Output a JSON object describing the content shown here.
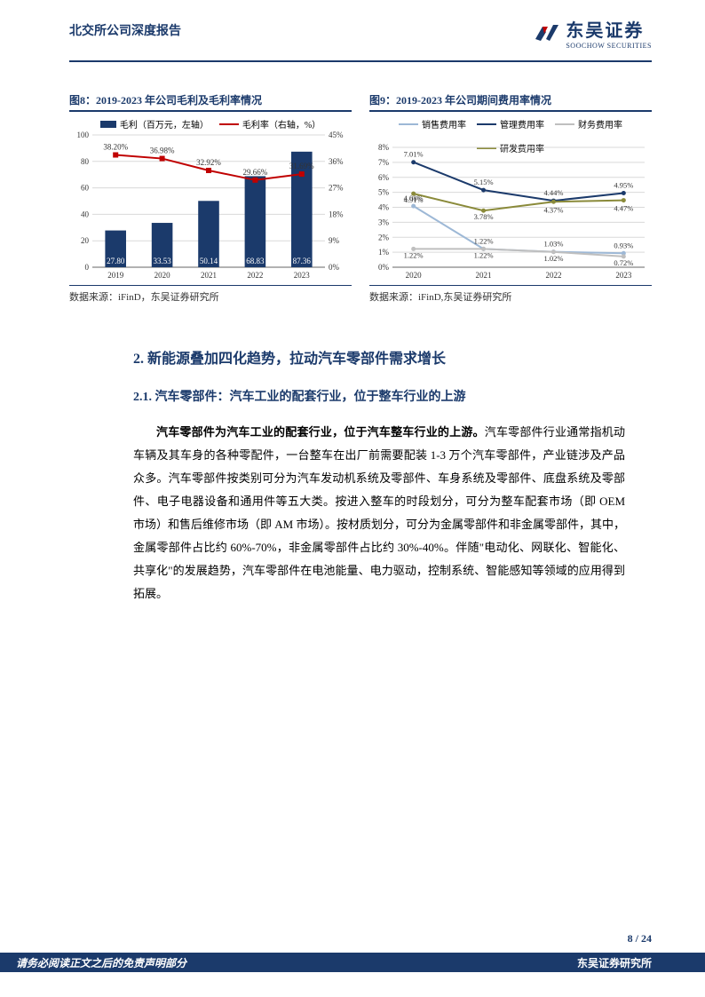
{
  "header": {
    "title": "北交所公司深度报告",
    "company_cn": "东吴证券",
    "company_en": "SOOCHOW SECURITIES"
  },
  "chart8": {
    "title": "图8：2019-2023 年公司毛利及毛利率情况",
    "source": "数据来源：iFinD，东吴证券研究所",
    "legend_bar": "毛利（百万元，左轴）",
    "legend_line": "毛利率（右轴，%）",
    "x": [
      "2019",
      "2020",
      "2021",
      "2022",
      "2023"
    ],
    "bar_values": [
      27.8,
      33.53,
      50.14,
      68.83,
      87.36
    ],
    "bar_labels": [
      "27.80",
      "33.53",
      "50.14",
      "68.83",
      "87.36"
    ],
    "line_values": [
      38.2,
      36.98,
      32.92,
      29.66,
      31.69
    ],
    "line_labels": [
      "38.20%",
      "36.98%",
      "32.92%",
      "29.66%",
      "31.69%"
    ],
    "y_left": {
      "min": 0,
      "max": 100,
      "ticks": [
        0,
        20,
        40,
        60,
        80,
        100
      ]
    },
    "y_right": {
      "min": 0,
      "max": 45,
      "ticks": [
        "0%",
        "9%",
        "18%",
        "27%",
        "36%",
        "45%"
      ]
    },
    "bar_color": "#1b3a6b",
    "line_color": "#c00000",
    "grid_color": "#d9d9d9",
    "axis_color": "#666666",
    "text_color": "#333333",
    "bar_width": 0.45
  },
  "chart9": {
    "title": "图9：2019-2023 年公司期间费用率情况",
    "source": "数据来源：iFinD,东吴证券研究所",
    "legend": [
      {
        "name": "销售费用率",
        "color": "#9db8d6"
      },
      {
        "name": "管理费用率",
        "color": "#1b3a6b"
      },
      {
        "name": "财务费用率",
        "color": "#bfbfbf"
      },
      {
        "name": "研发费用率",
        "color": "#8a8a3a"
      }
    ],
    "x": [
      "2020",
      "2021",
      "2022",
      "2023"
    ],
    "series": {
      "mgmt": {
        "color": "#1b3a6b",
        "values": [
          7.01,
          5.15,
          4.44,
          4.95
        ],
        "labels": [
          "7.01%",
          "5.15%",
          "4.44%",
          "4.95%"
        ]
      },
      "rd": {
        "color": "#8a8a3a",
        "values": [
          4.91,
          3.78,
          4.37,
          4.47
        ],
        "labels": [
          "4.91%",
          "3.78%",
          "4.37%",
          "4.47%"
        ]
      },
      "sales": {
        "color": "#9db8d6",
        "values": [
          4.08,
          1.22,
          1.03,
          0.93
        ],
        "labels": [
          "4.08%",
          "1.22%",
          "1.03%",
          "0.93%"
        ]
      },
      "fin": {
        "color": "#bfbfbf",
        "values": [
          1.22,
          1.22,
          1.02,
          0.72
        ],
        "labels": [
          "1.22%",
          "1.22%",
          "1.02%",
          "0.72%"
        ]
      }
    },
    "y": {
      "min": 0,
      "max": 8,
      "ticks": [
        "0%",
        "1%",
        "2%",
        "3%",
        "4%",
        "5%",
        "6%",
        "7%",
        "8%"
      ]
    },
    "grid_color": "#d9d9d9",
    "axis_color": "#666666"
  },
  "section": {
    "h2": "2.  新能源叠加四化趋势，拉动汽车零部件需求增长",
    "h3": "2.1.  汽车零部件：汽车工业的配套行业，位于整车行业的上游",
    "para_bold": "汽车零部件为汽车工业的配套行业，位于汽车整车行业的上游。",
    "para_rest": "汽车零部件行业通常指机动车辆及其车身的各种零配件，一台整车在出厂前需要配装 1-3 万个汽车零部件，产业链涉及产品众多。汽车零部件按类别可分为汽车发动机系统及零部件、车身系统及零部件、底盘系统及零部件、电子电器设备和通用件等五大类。按进入整车的时段划分，可分为整车配套市场（即 OEM 市场）和售后维修市场（即 AM 市场）。按材质划分，可分为金属零部件和非金属零部件，其中，金属零部件占比约 60%-70%，非金属零部件占比约 30%-40%。伴随\"电动化、网联化、智能化、共享化\"的发展趋势，汽车零部件在电池能量、电力驱动，控制系统、智能感知等领域的应用得到拓展。"
  },
  "footer": {
    "page": "8 / 24",
    "left": "请务必阅读正文之后的免责声明部分",
    "right": "东吴证券研究所"
  }
}
